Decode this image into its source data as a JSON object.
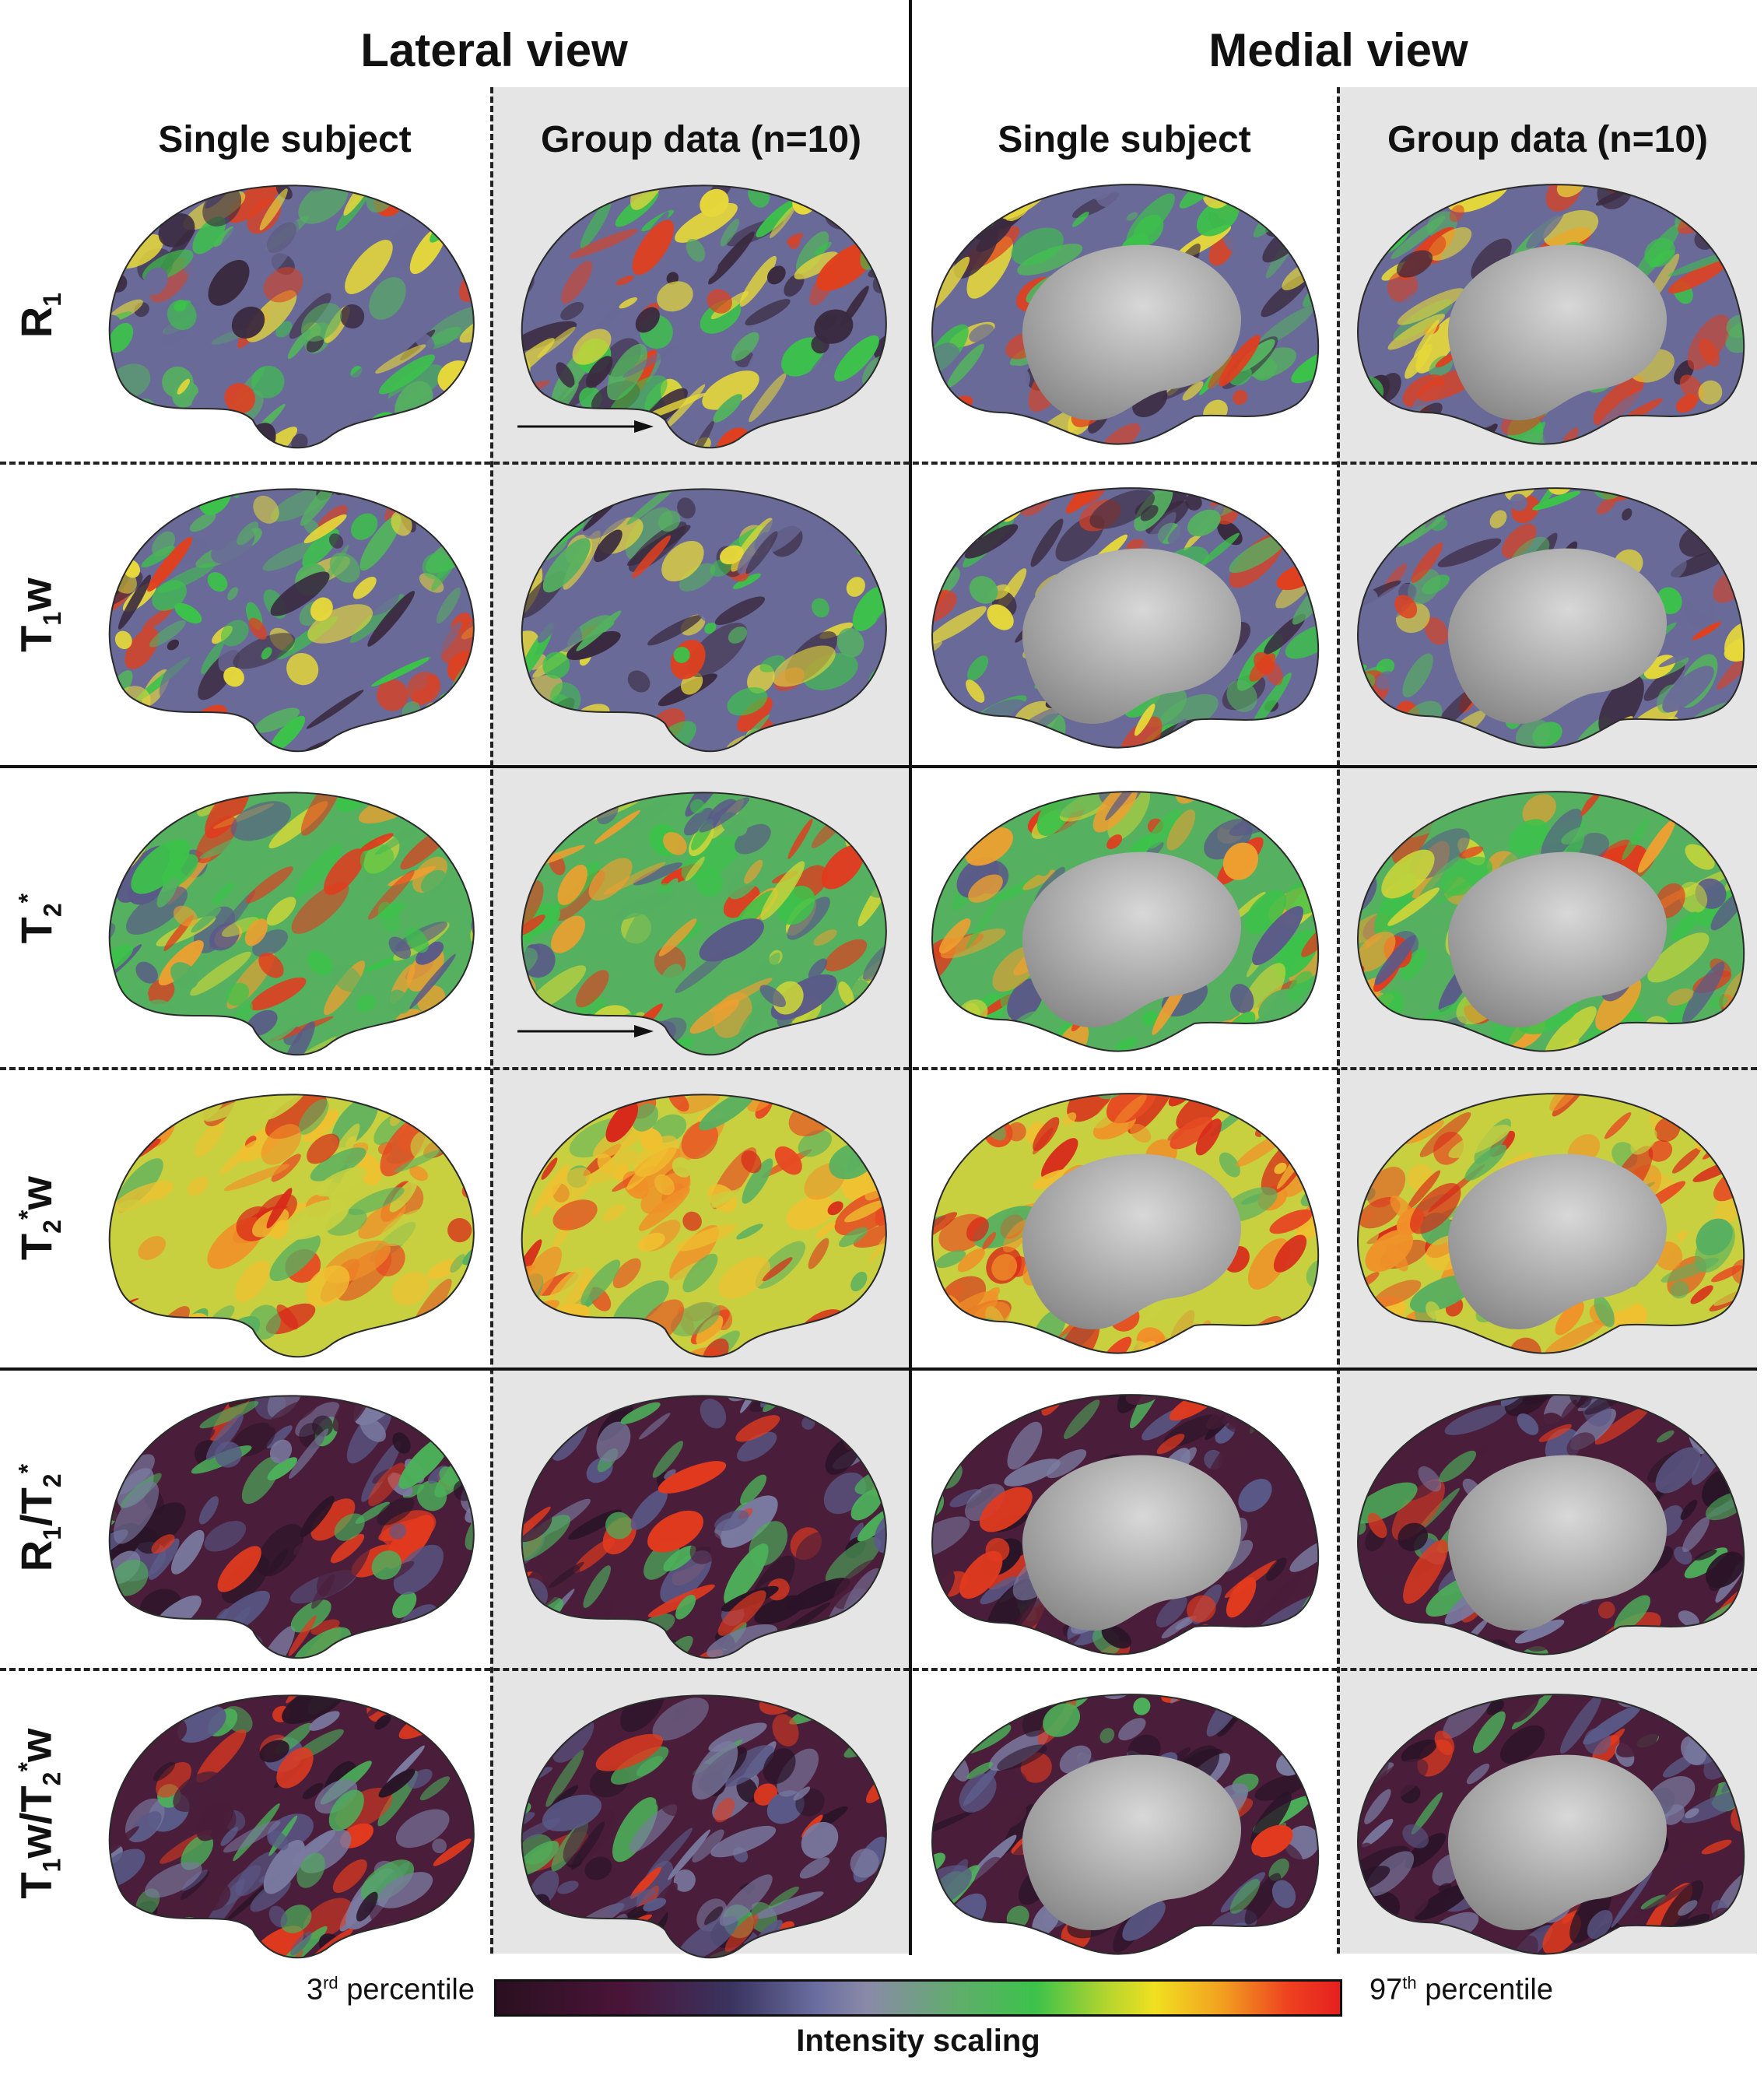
{
  "headers": {
    "lateral": "Lateral view",
    "medial": "Medial view"
  },
  "columns": {
    "lateral_single": "Single subject",
    "lateral_group": "Group data (n=10)",
    "medial_single": "Single subject",
    "medial_group": "Group data (n=10)"
  },
  "rows": [
    {
      "base": "R",
      "sub": "1",
      "rest": ""
    },
    {
      "base": "T",
      "sub": "1",
      "rest": "w"
    },
    {
      "base": "T",
      "sub": "2",
      "sup": "*",
      "rest": ""
    },
    {
      "base": "T",
      "sub": "2",
      "sup": "*",
      "rest": "w"
    },
    {
      "label_html": "R1/T2*"
    },
    {
      "label_html": "T1w/T2*w"
    }
  ],
  "legend": {
    "low": "3",
    "low_sup": "rd",
    "low_rest": " percentile",
    "high": "97",
    "high_sup": "th",
    "high_rest": " percentile",
    "title": "Intensity scaling"
  },
  "colors": {
    "gray_background": "#e5e5e5",
    "medial_wall": "#b4b4b4"
  },
  "panel_palettes": [
    "purple-green-red",
    "purple-green-red",
    "green-yellow-red",
    "orange-yellow-red",
    "dark-purple",
    "dark-purple"
  ]
}
